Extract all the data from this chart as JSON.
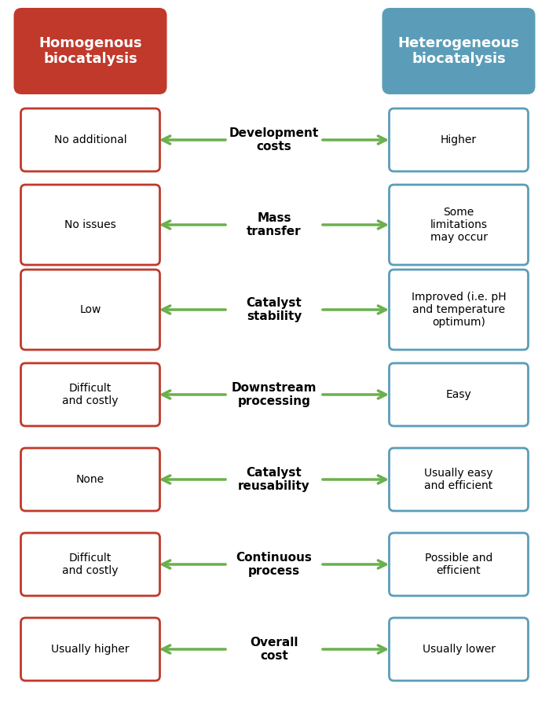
{
  "title_left": "Homogenous\nbiocatalysis",
  "title_right": "Heterogeneous\nbiocatalysis",
  "title_left_bg": "#c0392b",
  "title_right_bg": "#5b9db8",
  "left_box_color": "#c0392b",
  "right_box_color": "#5b9db8",
  "arrow_color": "#6ab04c",
  "rows": [
    {
      "center_label": "Development\ncosts",
      "left_text": "No additional",
      "right_text": "Higher"
    },
    {
      "center_label": "Mass\ntransfer",
      "left_text": "No issues",
      "right_text": "Some\nlimitations\nmay occur"
    },
    {
      "center_label": "Catalyst\nstability",
      "left_text": "Low",
      "right_text": "Improved (i.e. pH\nand temperature\noptimum)"
    },
    {
      "center_label": "Downstream\nprocessing",
      "left_text": "Difficult\nand costly",
      "right_text": "Easy"
    },
    {
      "center_label": "Catalyst\nreusability",
      "left_text": "None",
      "right_text": "Usually easy\nand efficient"
    },
    {
      "center_label": "Continuous\nprocess",
      "left_text": "Difficult\nand costly",
      "right_text": "Possible and\nefficient"
    },
    {
      "center_label": "Overall\ncost",
      "left_text": "Usually higher",
      "right_text": "Usually lower"
    }
  ],
  "bg_color": "#ffffff",
  "figsize": [
    6.99,
    9.02
  ],
  "dpi": 100
}
